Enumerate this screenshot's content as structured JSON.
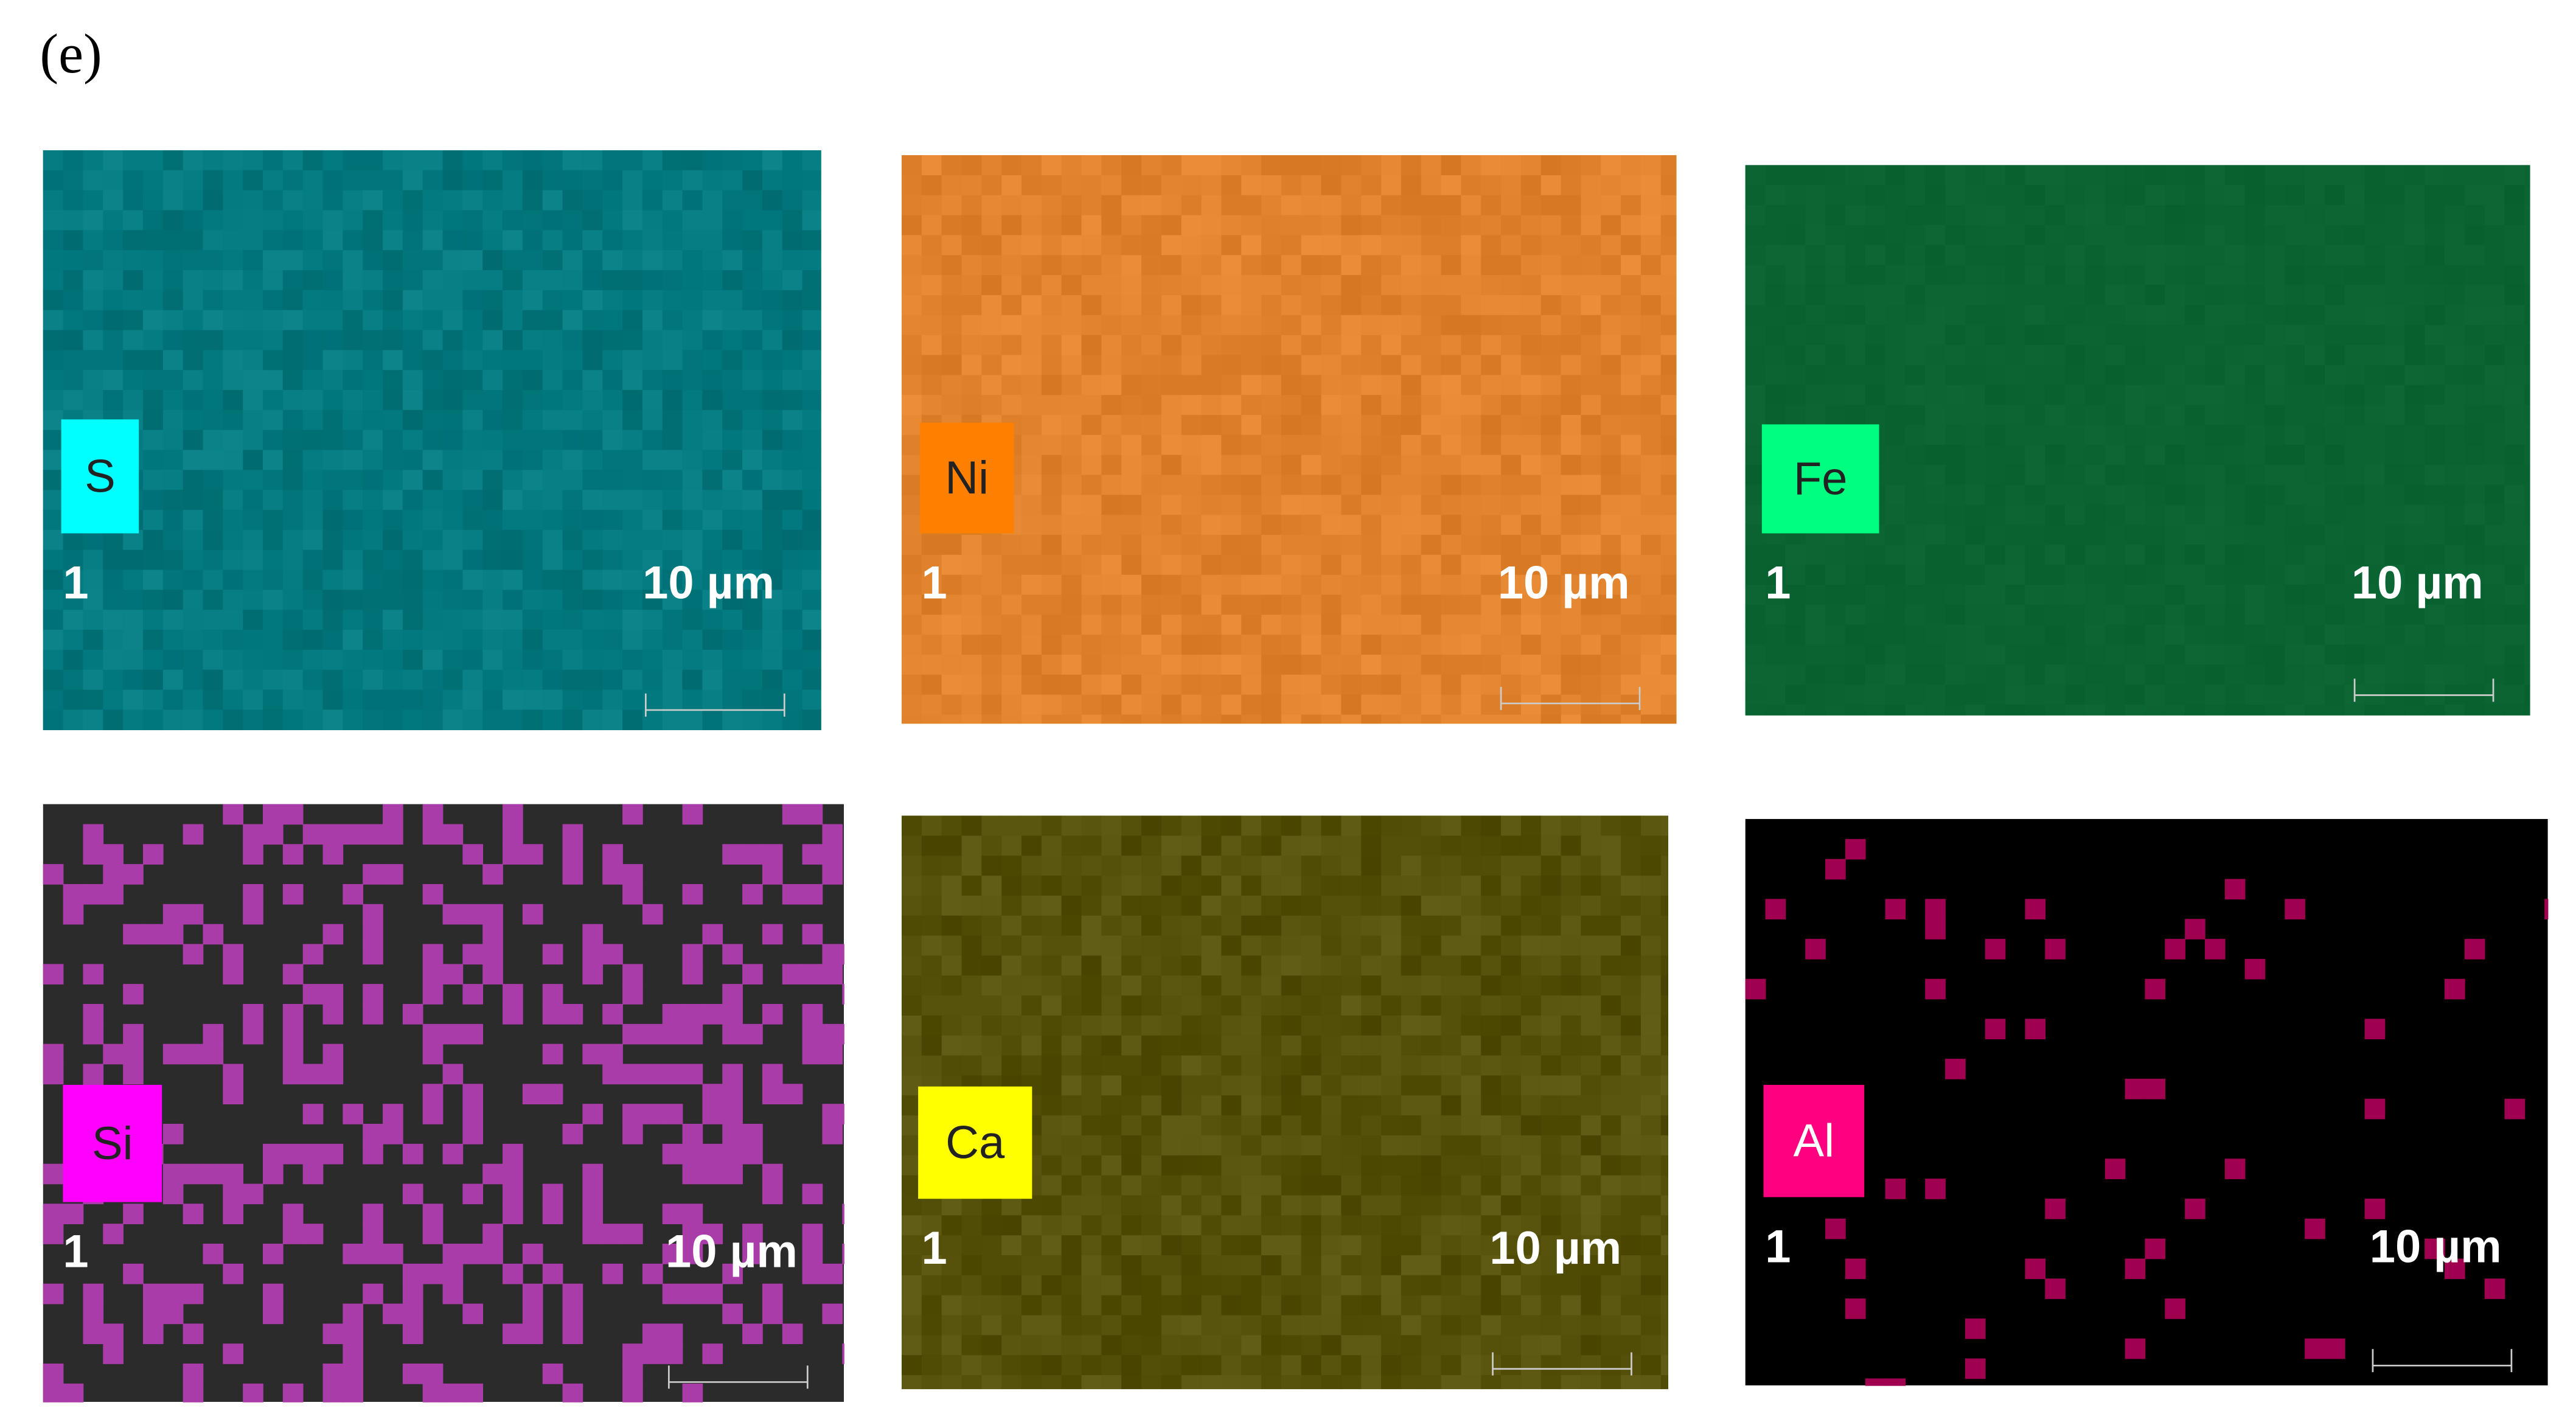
{
  "panel_label": "(e)",
  "maps": [
    {
      "element": "S",
      "index": "1",
      "scale": "10 µm"
    },
    {
      "element": "Ni",
      "index": "1",
      "scale": "10 µm"
    },
    {
      "element": "Fe",
      "index": "1",
      "scale": "10 µm"
    },
    {
      "element": "Si",
      "index": "1",
      "scale": "10 µm"
    },
    {
      "element": "Ca",
      "index": "1",
      "scale": "10 µm"
    },
    {
      "element": "Al",
      "index": "1",
      "scale": "10 µm"
    }
  ]
}
